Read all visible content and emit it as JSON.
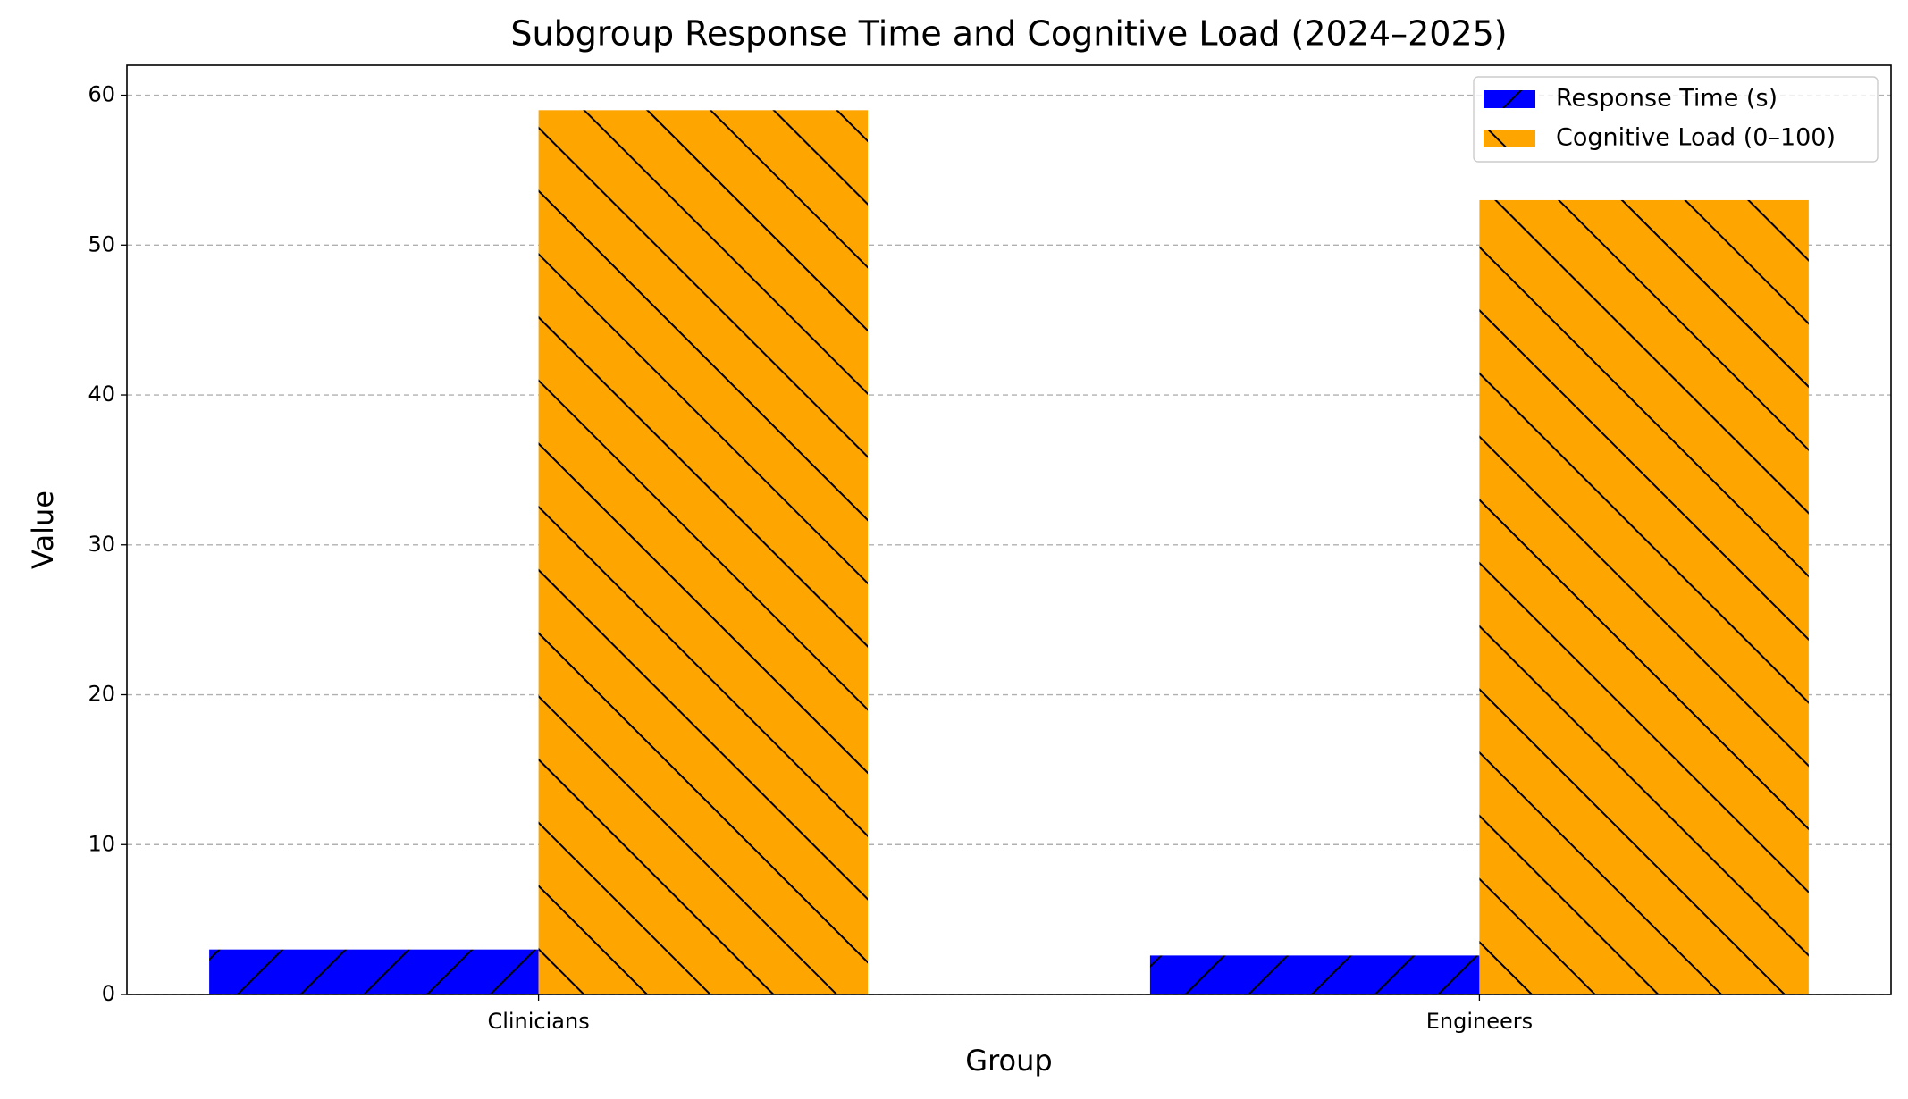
{
  "chart_data": {
    "type": "bar",
    "title": "Subgroup Response Time and Cognitive Load (2024–2025)",
    "x_label": "Group",
    "y_label": "Value",
    "categories": [
      "Clinicians",
      "Engineers"
    ],
    "series": [
      {
        "name": "Response Time (s)",
        "color": "#0000ff",
        "hatch": "/",
        "values": [
          3.0,
          2.6
        ]
      },
      {
        "name": "Cognitive Load (0–100)",
        "color": "#ffa500",
        "hatch": "\\",
        "values": [
          59.0,
          53.0
        ]
      }
    ],
    "ylim": [
      0,
      62
    ],
    "yticks": [
      0,
      10,
      20,
      30,
      40,
      50,
      60
    ],
    "grid": true,
    "legend": "upper right"
  }
}
